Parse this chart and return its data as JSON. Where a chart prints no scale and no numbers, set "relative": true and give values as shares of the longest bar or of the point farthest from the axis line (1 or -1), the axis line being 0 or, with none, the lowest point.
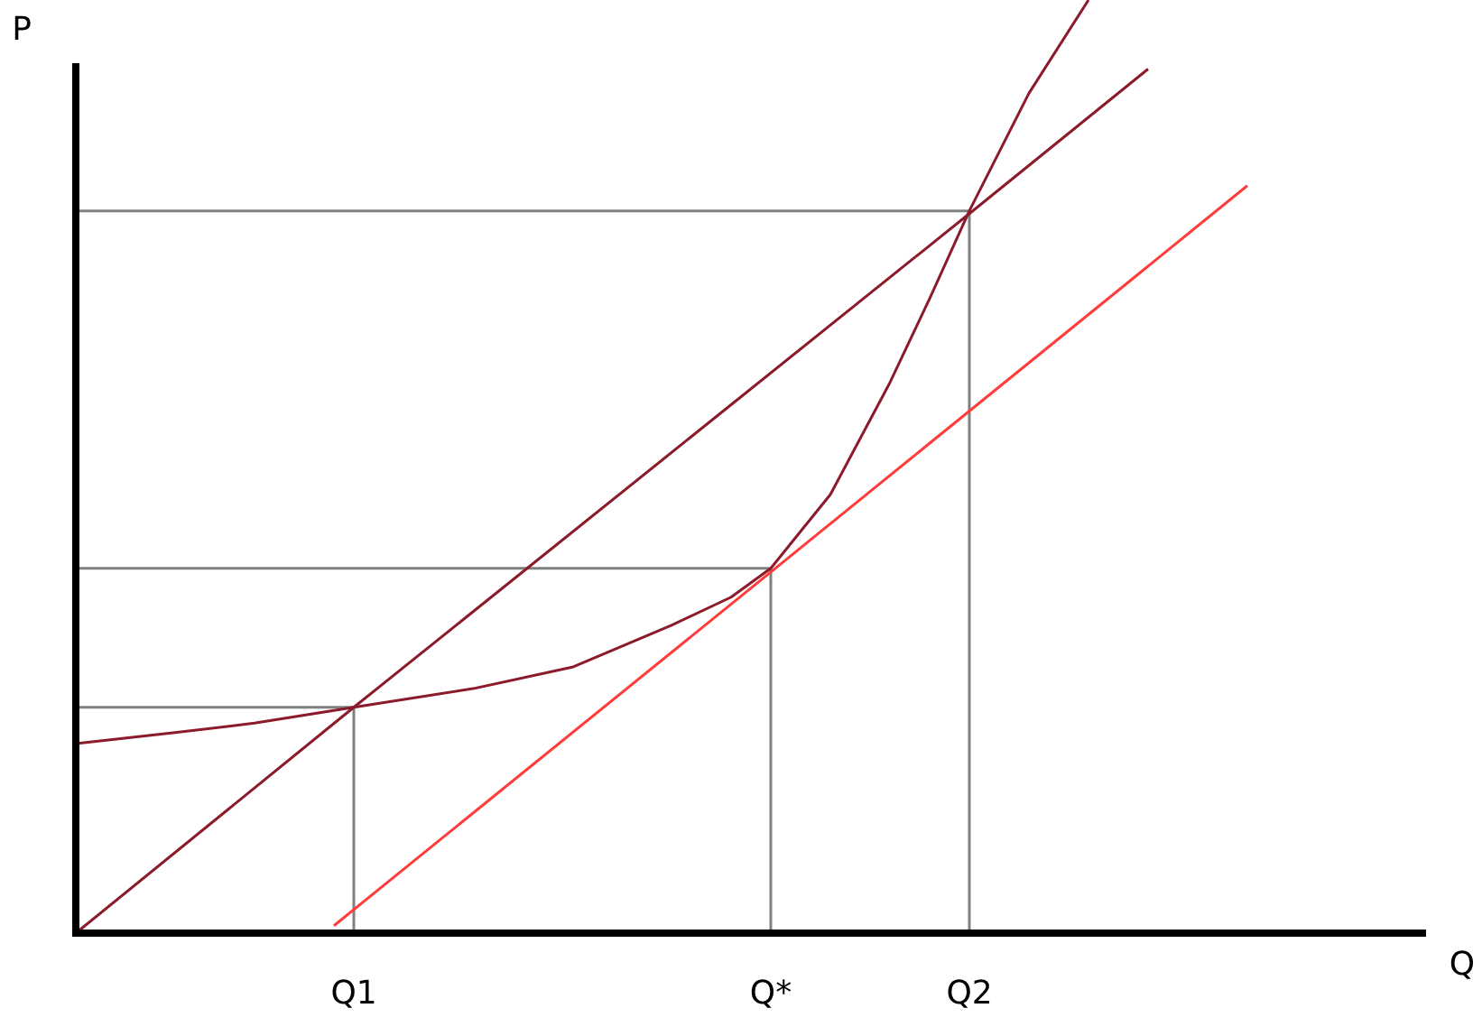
{
  "chart_data": {
    "type": "line",
    "relative": true,
    "xlabel": "Q",
    "ylabel": "P",
    "tick_labels": "x",
    "categories": [
      null,
      null,
      null,
      null,
      null,
      null,
      null,
      null,
      null,
      null,
      null,
      null,
      null,
      null,
      "Q1",
      null,
      null,
      null,
      null,
      null,
      null,
      null,
      null,
      null,
      null,
      null,
      null,
      null,
      null,
      null,
      null,
      null,
      null,
      null,
      null,
      "Q*",
      null,
      null,
      null,
      null,
      null,
      null,
      null,
      null,
      null,
      "Q2",
      null,
      null,
      null,
      null,
      null,
      null,
      null,
      null,
      null,
      null,
      null,
      null,
      null,
      null,
      null,
      null,
      null,
      null,
      null,
      null,
      null,
      null,
      null
    ],
    "series": [
      {
        "color": "#808080",
        "values": [
          0.242,
          null,
          null,
          null,
          null,
          null,
          null,
          null,
          null,
          null,
          null,
          null,
          null,
          null,
          0.242,
          null,
          null,
          null,
          null,
          null,
          null,
          null,
          null,
          null,
          null,
          null,
          null,
          null,
          null,
          null,
          null,
          null,
          null,
          null,
          null,
          null,
          null,
          null,
          null,
          null,
          null,
          null,
          null,
          null,
          null,
          null,
          null,
          null,
          null,
          null,
          null,
          null,
          null,
          null,
          null,
          null,
          null,
          null,
          null,
          null,
          null,
          null,
          null,
          null,
          null,
          null,
          null,
          null,
          null
        ]
      },
      {
        "color": "#808080",
        "values": [
          0.391,
          null,
          null,
          null,
          null,
          null,
          null,
          null,
          null,
          null,
          null,
          null,
          null,
          null,
          null,
          null,
          null,
          null,
          null,
          null,
          null,
          null,
          null,
          null,
          null,
          null,
          null,
          null,
          null,
          null,
          null,
          null,
          null,
          null,
          null,
          0.391,
          null,
          null,
          null,
          null,
          null,
          null,
          null,
          null,
          null,
          null,
          null,
          null,
          null,
          null,
          null,
          null,
          null,
          null,
          null,
          null,
          null,
          null,
          null,
          null,
          null,
          null,
          null,
          null,
          null,
          null,
          null,
          null,
          null
        ]
      },
      {
        "color": "#808080",
        "values": [
          0.774,
          null,
          null,
          null,
          null,
          null,
          null,
          null,
          null,
          null,
          null,
          null,
          null,
          null,
          null,
          null,
          null,
          null,
          null,
          null,
          null,
          null,
          null,
          null,
          null,
          null,
          null,
          null,
          null,
          null,
          null,
          null,
          null,
          null,
          null,
          null,
          null,
          null,
          null,
          null,
          null,
          null,
          null,
          null,
          null,
          0.774,
          null,
          null,
          null,
          null,
          null,
          null,
          null,
          null,
          null,
          null,
          null,
          null,
          null,
          null,
          null,
          null,
          null,
          null,
          null,
          null,
          null,
          null,
          null
        ]
      },
      {
        "type": "bar",
        "color": "#808080",
        "values": [
          null,
          null,
          null,
          null,
          null,
          null,
          null,
          null,
          null,
          null,
          null,
          null,
          null,
          null,
          0.242,
          null,
          null,
          null,
          null,
          null,
          null,
          null,
          null,
          null,
          null,
          null,
          null,
          null,
          null,
          null,
          null,
          null,
          null,
          null,
          null,
          0.391,
          null,
          null,
          null,
          null,
          null,
          null,
          null,
          null,
          null,
          0.774,
          null,
          null,
          null,
          null,
          null,
          null,
          null,
          null,
          null,
          null,
          null,
          null,
          null,
          null,
          null,
          null,
          null,
          null,
          null,
          null,
          null,
          null,
          null
        ]
      },
      {
        "color": "#8b1a2b",
        "values": [
          0,
          null,
          null,
          null,
          null,
          null,
          null,
          null,
          null,
          null,
          null,
          null,
          null,
          null,
          0.242,
          null,
          null,
          null,
          null,
          null,
          null,
          null,
          null,
          null,
          null,
          null,
          null,
          null,
          null,
          null,
          null,
          null,
          null,
          null,
          null,
          null,
          null,
          null,
          null,
          null,
          null,
          null,
          null,
          null,
          null,
          0.771,
          null,
          null,
          null,
          null,
          null,
          null,
          null,
          null,
          0.926,
          null,
          null,
          null,
          null,
          null,
          null,
          null,
          null,
          null,
          null,
          null,
          null,
          null,
          null
        ]
      },
      {
        "color": "#ff3b3b",
        "values": [
          null,
          null,
          null,
          null,
          null,
          null,
          null,
          null,
          null,
          null,
          null,
          null,
          null,
          0.008,
          null,
          null,
          null,
          null,
          null,
          null,
          null,
          null,
          null,
          null,
          null,
          null,
          null,
          null,
          null,
          null,
          null,
          null,
          null,
          null,
          null,
          0.387,
          null,
          null,
          null,
          null,
          null,
          null,
          null,
          null,
          null,
          null,
          null,
          null,
          null,
          null,
          null,
          null,
          null,
          null,
          null,
          null,
          null,
          null,
          null,
          0.801,
          null,
          null,
          null,
          null,
          null,
          null,
          null,
          null,
          null
        ]
      },
      {
        "color": "#8b1a2b",
        "values": [
          0.203,
          null,
          null,
          null,
          null,
          0.215,
          null,
          null,
          null,
          0.225,
          null,
          null,
          null,
          null,
          0.242,
          null,
          null,
          null,
          null,
          null,
          0.262,
          null,
          null,
          null,
          null,
          0.285,
          null,
          null,
          null,
          null,
          0.33,
          null,
          null,
          0.36,
          null,
          0.391,
          null,
          null,
          0.47,
          null,
          null,
          0.59,
          null,
          0.68,
          null,
          0.774,
          null,
          null,
          0.9,
          null,
          null,
          1,
          null,
          null,
          null,
          null,
          null,
          null,
          null,
          null,
          null,
          null,
          null,
          null,
          null,
          null,
          null,
          null,
          null
        ]
      }
    ]
  }
}
